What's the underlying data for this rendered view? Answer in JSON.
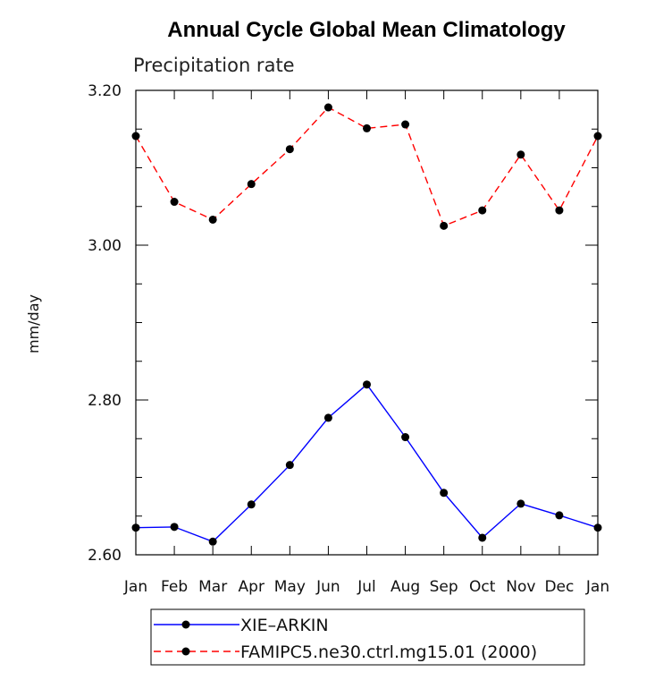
{
  "chart_data": {
    "type": "line",
    "title": "Annual Cycle Global Mean Climatology",
    "subtitle": "Precipitation rate",
    "xlabel": "",
    "ylabel": "mm/day",
    "categories": [
      "Jan",
      "Feb",
      "Mar",
      "Apr",
      "May",
      "Jun",
      "Jul",
      "Aug",
      "Sep",
      "Oct",
      "Nov",
      "Dec",
      "Jan"
    ],
    "ylim": [
      2.6,
      3.2
    ],
    "yticks": [
      "2.60",
      "2.80",
      "3.00",
      "3.20"
    ],
    "grid": false,
    "legend_position": "bottom",
    "series": [
      {
        "name": "XIE–ARKIN",
        "color": "#0000ff",
        "line_style": "solid",
        "marker": "circle",
        "values": [
          2.635,
          2.636,
          2.617,
          2.665,
          2.716,
          2.777,
          2.82,
          2.752,
          2.68,
          2.622,
          2.666,
          2.651,
          2.635
        ]
      },
      {
        "name": "FAMIPC5.ne30.ctrl.mg15.01 (2000)",
        "color": "#ff0000",
        "line_style": "dashed",
        "marker": "circle",
        "values": [
          3.141,
          3.056,
          3.033,
          3.079,
          3.124,
          3.178,
          3.151,
          3.156,
          3.025,
          3.045,
          3.117,
          3.045,
          3.141
        ]
      }
    ]
  }
}
